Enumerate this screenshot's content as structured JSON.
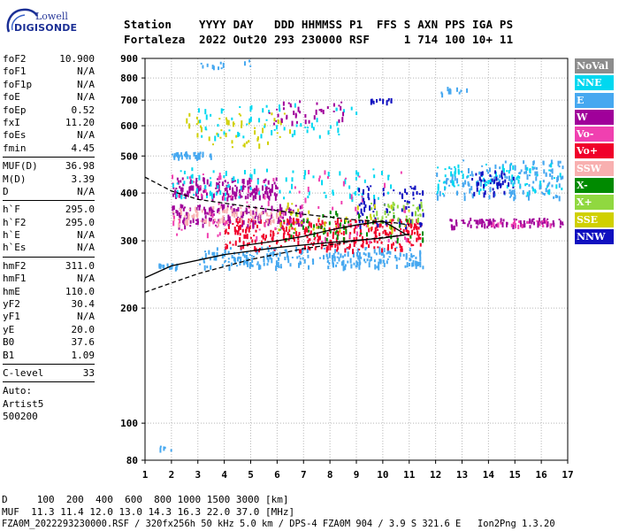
{
  "logo": {
    "top": "Lowell",
    "main": "DIGISONDE"
  },
  "header": {
    "line1": "Station    YYYY DAY   DDD HHMMSS P1  FFS S AXN PPS IGA PS",
    "line2": "Fortaleza  2022 Out20 293 230000 RSF     1 714 100 10+ 11"
  },
  "parameters": [
    {
      "name": "foF2",
      "value": "10.900"
    },
    {
      "name": "foF1",
      "value": "N/A"
    },
    {
      "name": "foF1p",
      "value": "N/A"
    },
    {
      "name": "foE",
      "value": "N/A"
    },
    {
      "name": "foEp",
      "value": "0.52"
    },
    {
      "name": "fxI",
      "value": "11.20"
    },
    {
      "name": "foEs",
      "value": "N/A"
    },
    {
      "name": "fmin",
      "value": "4.45"
    },
    {
      "sep": true
    },
    {
      "name": "MUF(D)",
      "value": "36.98"
    },
    {
      "name": "M(D)",
      "value": "3.39"
    },
    {
      "name": "D",
      "value": "N/A"
    },
    {
      "sep": true
    },
    {
      "name": "h`F",
      "value": "295.0"
    },
    {
      "name": "h`F2",
      "value": "295.0"
    },
    {
      "name": "h`E",
      "value": "N/A"
    },
    {
      "name": "h`Es",
      "value": "N/A"
    },
    {
      "sep": true
    },
    {
      "name": "hmF2",
      "value": "311.0"
    },
    {
      "name": "hmF1",
      "value": "N/A"
    },
    {
      "name": "hmE",
      "value": "110.0"
    },
    {
      "name": "yF2",
      "value": "30.4"
    },
    {
      "name": "yF1",
      "value": "N/A"
    },
    {
      "name": "yE",
      "value": "20.0"
    },
    {
      "name": "B0",
      "value": "37.6"
    },
    {
      "name": "B1",
      "value": "1.09"
    },
    {
      "sep": true
    },
    {
      "name": "C-level",
      "value": "33"
    },
    {
      "sep": true
    },
    {
      "name": "Auto:",
      "value": ""
    },
    {
      "name": "Artist5",
      "value": ""
    },
    {
      "name": "500200",
      "value": ""
    }
  ],
  "legend": [
    {
      "label": "NoVal",
      "color": "#8c8c8c"
    },
    {
      "label": "NNE",
      "color": "#00d8f0"
    },
    {
      "label": "E",
      "color": "#46a8f0"
    },
    {
      "label": "W",
      "color": "#a0009a"
    },
    {
      "label": "Vo-",
      "color": "#f040b0"
    },
    {
      "label": "Vo+",
      "color": "#f0002a"
    },
    {
      "label": "SSW",
      "color": "#f8b0b0"
    },
    {
      "label": "X-",
      "color": "#008a00"
    },
    {
      "label": "X+",
      "color": "#90d840"
    },
    {
      "label": "SSE",
      "color": "#d0d000"
    },
    {
      "label": "NNW",
      "color": "#1010c0"
    }
  ],
  "footer": {
    "line1": "D     100  200  400  600  800 1000 1500 3000 [km]",
    "line2": "MUF  11.3 11.4 12.0 13.0 14.3 16.3 22.0 37.0 [MHz]",
    "line3": "FZA0M_2022293230000.RSF / 320fx256h 50 kHz 5.0 km / DPS-4 FZA0M 904 / 3.9 S 321.6 E   Ion2Png 1.3.20"
  },
  "chart_data": {
    "type": "scatter",
    "xlabel": "",
    "ylabel": "",
    "xlim": [
      1,
      17
    ],
    "ylim": [
      80,
      900
    ],
    "y_scale": "log",
    "x_ticks": [
      1,
      2,
      3,
      4,
      5,
      6,
      7,
      8,
      9,
      10,
      11,
      12,
      13,
      14,
      15,
      16,
      17
    ],
    "y_ticks": [
      80,
      100,
      200,
      300,
      400,
      500,
      600,
      700,
      800,
      900
    ],
    "grid": true,
    "legend_position": "right",
    "traces": [
      {
        "name": "solid-envelope",
        "style": "solid",
        "color": "#000000",
        "points": [
          [
            1.0,
            240
          ],
          [
            2.0,
            258
          ],
          [
            4.0,
            276
          ],
          [
            6.0,
            288
          ],
          [
            8.0,
            297
          ],
          [
            10.0,
            305
          ],
          [
            11.0,
            312
          ]
        ]
      },
      {
        "name": "dashed-lower",
        "style": "dashed",
        "color": "#000000",
        "points": [
          [
            1.0,
            220
          ],
          [
            3.0,
            246
          ],
          [
            5.0,
            268
          ],
          [
            7.0,
            286
          ],
          [
            9.0,
            300
          ],
          [
            10.5,
            309
          ],
          [
            11.0,
            312
          ]
        ]
      },
      {
        "name": "dashed-upper",
        "style": "dashed",
        "color": "#000000",
        "points": [
          [
            1.0,
            440
          ],
          [
            2.0,
            405
          ],
          [
            3.0,
            385
          ],
          [
            5.0,
            368
          ],
          [
            7.0,
            352
          ],
          [
            9.0,
            340
          ],
          [
            10.5,
            334
          ],
          [
            11.0,
            330
          ]
        ]
      },
      {
        "name": "profile",
        "style": "solid",
        "color": "#000000",
        "points": [
          [
            4.5,
            290
          ],
          [
            6.0,
            300
          ],
          [
            7.0,
            308
          ],
          [
            8.0,
            320
          ],
          [
            9.0,
            330
          ],
          [
            10.0,
            338
          ],
          [
            10.9,
            311
          ]
        ]
      }
    ],
    "echo_regions": [
      {
        "color_key": "E",
        "x": [
          3.0,
          11.5
        ],
        "y": [
          258,
          290
        ],
        "density": 260
      },
      {
        "color_key": "Vo+",
        "x": [
          4.0,
          11.5
        ],
        "y": [
          285,
          345
        ],
        "density": 320
      },
      {
        "color_key": "W",
        "x": [
          2.0,
          6.0
        ],
        "y": [
          390,
          440
        ],
        "density": 160
      },
      {
        "color_key": "W",
        "x": [
          2.0,
          7.0
        ],
        "y": [
          330,
          375
        ],
        "density": 160
      },
      {
        "color_key": "SSW",
        "x": [
          2.0,
          6.0
        ],
        "y": [
          335,
          370
        ],
        "density": 90
      },
      {
        "color_key": "NNE",
        "x": [
          2.0,
          10.5
        ],
        "y": [
          390,
          470
        ],
        "density": 90
      },
      {
        "color_key": "Vo-",
        "x": [
          2.0,
          11.0
        ],
        "y": [
          300,
          460
        ],
        "density": 90
      },
      {
        "color_key": "NNW",
        "x": [
          9.0,
          11.5
        ],
        "y": [
          330,
          420
        ],
        "density": 80
      },
      {
        "color_key": "X-",
        "x": [
          6.0,
          11.5
        ],
        "y": [
          300,
          360
        ],
        "density": 60
      },
      {
        "color_key": "SSE",
        "x": [
          6.0,
          11.0
        ],
        "y": [
          320,
          380
        ],
        "density": 40
      },
      {
        "color_key": "X+",
        "x": [
          9.5,
          11.5
        ],
        "y": [
          340,
          380
        ],
        "density": 40
      },
      {
        "color_key": "E",
        "x": [
          12.0,
          16.8
        ],
        "y": [
          390,
          490
        ],
        "density": 160
      },
      {
        "color_key": "NNE",
        "x": [
          12.0,
          16.8
        ],
        "y": [
          400,
          480
        ],
        "density": 80
      },
      {
        "color_key": "NNW",
        "x": [
          13.3,
          15.0
        ],
        "y": [
          400,
          460
        ],
        "density": 40
      },
      {
        "color_key": "W",
        "x": [
          12.5,
          16.8
        ],
        "y": [
          328,
          345
        ],
        "density": 90
      },
      {
        "color_key": "Vo-",
        "x": [
          14.0,
          16.5
        ],
        "y": [
          330,
          340
        ],
        "density": 20
      },
      {
        "color_key": "E",
        "x": [
          2.0,
          3.5
        ],
        "y": [
          500,
          515
        ],
        "density": 40
      },
      {
        "color_key": "E",
        "x": [
          1.5,
          2.2
        ],
        "y": [
          256,
          262
        ],
        "density": 20
      },
      {
        "color_key": "SSE",
        "x": [
          2.5,
          6.5
        ],
        "y": [
          530,
          650
        ],
        "density": 50
      },
      {
        "color_key": "NNE",
        "x": [
          3.0,
          9.0
        ],
        "y": [
          560,
          690
        ],
        "density": 60
      },
      {
        "color_key": "W",
        "x": [
          5.5,
          8.5
        ],
        "y": [
          610,
          700
        ],
        "density": 40
      },
      {
        "color_key": "NNW",
        "x": [
          9.5,
          10.3
        ],
        "y": [
          695,
          710
        ],
        "density": 12
      },
      {
        "color_key": "E",
        "x": [
          12.0,
          13.3
        ],
        "y": [
          730,
          760
        ],
        "density": 10
      },
      {
        "color_key": "E",
        "x": [
          1.5,
          2.0
        ],
        "y": [
          85,
          88
        ],
        "density": 6
      },
      {
        "color_key": "E",
        "x": [
          3.0,
          5.0
        ],
        "y": [
          850,
          895
        ],
        "density": 12
      }
    ]
  }
}
